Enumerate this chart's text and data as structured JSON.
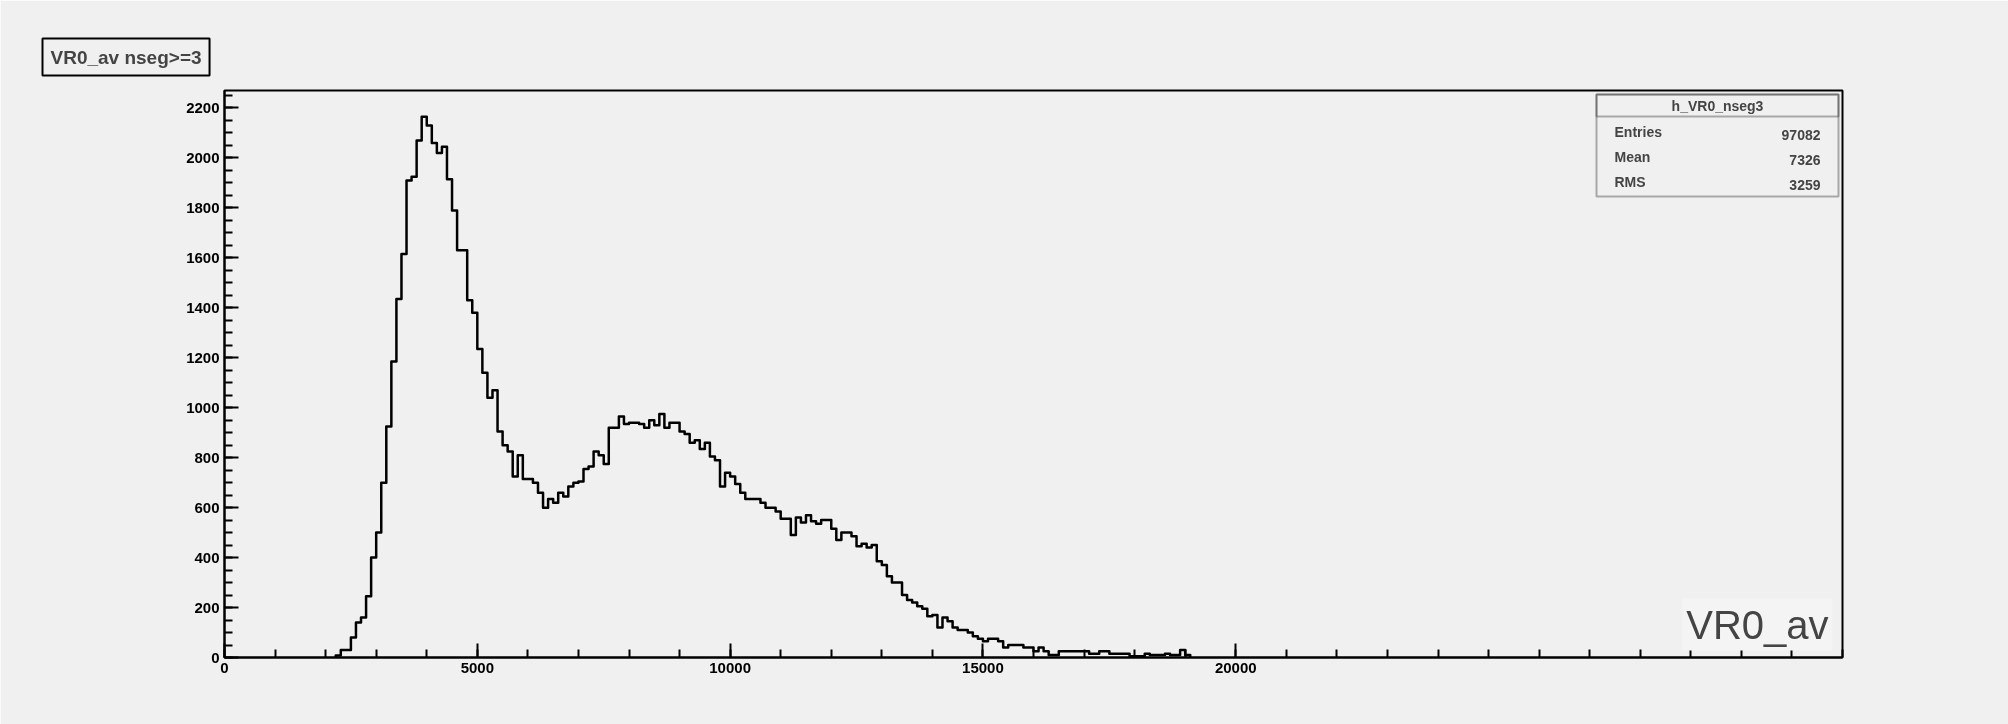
{
  "chart_data": {
    "type": "histogram",
    "title": "VR0_av nseg>=3",
    "xlabel": "VR0_av",
    "bins": [
      2200,
      2300,
      2400,
      2500,
      2600,
      2700,
      2800,
      2900,
      3000,
      3100,
      3200,
      3300,
      3400,
      3500,
      3600,
      3700,
      3800,
      3900,
      4000,
      4100,
      4200,
      4300,
      4400,
      4500,
      4600,
      4700,
      4800,
      4900,
      5000,
      5100,
      5200,
      5300,
      5400,
      5500,
      5600,
      5700,
      5800,
      5900,
      6000,
      6100,
      6200,
      6300,
      6400,
      6500,
      6600,
      6700,
      6800,
      6900,
      7000,
      7100,
      7200,
      7300,
      7400,
      7500,
      7600,
      7700,
      7800,
      7900,
      8000,
      8100,
      8200,
      8300,
      8400,
      8500,
      8600,
      8700,
      8800,
      8900,
      9000,
      9100,
      9200,
      9300,
      9400,
      9500,
      9600,
      9700,
      9800,
      9900,
      10000,
      10100,
      10200,
      10300,
      10400,
      10500,
      10600,
      10700,
      10800,
      10900,
      11000,
      11100,
      11200,
      11300,
      11400,
      11500,
      11600,
      11700,
      11800,
      11900,
      12000,
      12100,
      12200,
      12300,
      12400,
      12500,
      12600,
      12700,
      12800,
      12900,
      13000,
      13100,
      13200,
      13300,
      13400,
      13500,
      13600,
      13700,
      13800,
      13900,
      14000,
      14100,
      14200,
      14300,
      14400,
      14500,
      14600,
      14700,
      14800,
      14900,
      15000,
      15100,
      15200,
      15300,
      15400,
      15500,
      15600,
      15700,
      15800,
      15900,
      16000,
      16100,
      16200,
      16300,
      16400,
      16500,
      16600,
      16700,
      16800,
      16900,
      17000,
      17100,
      17200,
      17300,
      17400,
      17500,
      17600,
      17700,
      17800,
      17900,
      18000,
      18100,
      18200,
      18300,
      18400,
      18500,
      18600,
      18700,
      18800,
      18900,
      19000,
      19100
    ],
    "values": [
      8,
      30,
      30,
      80,
      140,
      160,
      245,
      400,
      500,
      700,
      925,
      1185,
      1435,
      1615,
      1910,
      1925,
      2070,
      2165,
      2130,
      2060,
      2020,
      2045,
      1915,
      1790,
      1630,
      1630,
      1430,
      1380,
      1235,
      1140,
      1040,
      1070,
      905,
      850,
      825,
      725,
      810,
      715,
      715,
      700,
      660,
      600,
      635,
      620,
      660,
      645,
      685,
      700,
      705,
      755,
      765,
      825,
      810,
      775,
      920,
      920,
      965,
      935,
      940,
      940,
      935,
      920,
      950,
      930,
      975,
      920,
      940,
      940,
      905,
      895,
      860,
      870,
      835,
      860,
      805,
      790,
      685,
      740,
      725,
      695,
      660,
      635,
      635,
      635,
      620,
      600,
      600,
      585,
      555,
      555,
      490,
      560,
      540,
      570,
      545,
      535,
      550,
      550,
      515,
      470,
      500,
      500,
      485,
      445,
      455,
      440,
      450,
      385,
      370,
      325,
      300,
      300,
      250,
      230,
      220,
      205,
      195,
      165,
      170,
      120,
      160,
      145,
      120,
      110,
      110,
      100,
      85,
      75,
      65,
      75,
      75,
      65,
      40,
      50,
      50,
      50,
      40,
      40,
      25,
      40,
      25,
      10,
      10,
      25,
      25,
      25,
      25,
      25,
      25,
      15,
      15,
      25,
      25,
      15,
      15,
      15,
      15,
      5,
      5,
      5,
      15,
      10,
      10,
      10,
      15,
      10,
      10,
      30,
      10
    ],
    "xlim": [
      0,
      32000
    ],
    "ylim": [
      0,
      2270
    ],
    "xticks": [
      0,
      5000,
      10000,
      15000,
      20000
    ],
    "yticks": [
      0,
      200,
      400,
      600,
      800,
      1000,
      1200,
      1400,
      1600,
      1800,
      2000,
      2200
    ],
    "color": "#000000",
    "annotations": [
      "h_VR0_nseg3",
      "Entries",
      "97082",
      "Mean",
      "7326",
      "RMS",
      "3259"
    ]
  }
}
